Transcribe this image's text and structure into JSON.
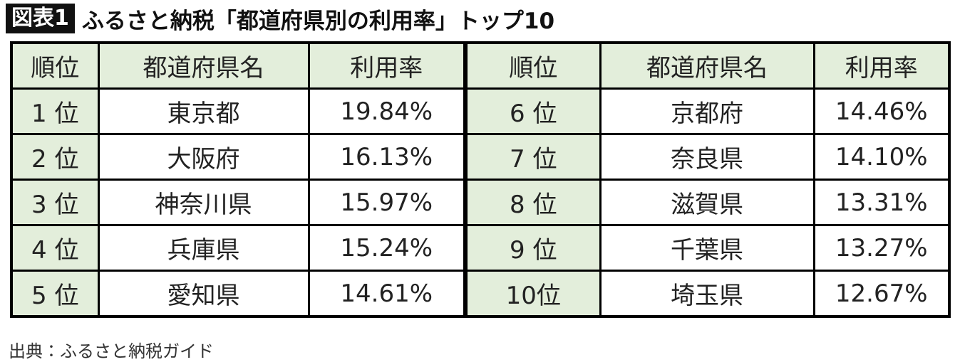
{
  "header": {
    "label": "図表1",
    "title": "ふるさと納税「都道府県別の利用率」トップ10"
  },
  "table": {
    "columns": [
      "順位",
      "都道府県名",
      "利用率",
      "順位",
      "都道府県名",
      "利用率"
    ],
    "rows": [
      [
        "1 位",
        "東京都",
        "19.84%",
        "6 位",
        "京都府",
        "14.46%"
      ],
      [
        "2 位",
        "大阪府",
        "16.13%",
        "7 位",
        "奈良県",
        "14.10%"
      ],
      [
        "3 位",
        "神奈川県",
        "15.97%",
        "8 位",
        "滋賀県",
        "13.31%"
      ],
      [
        "4 位",
        "兵庫県",
        "15.24%",
        "9 位",
        "千葉県",
        "13.27%"
      ],
      [
        "5 位",
        "愛知県",
        "14.61%",
        "10位",
        "埼玉県",
        "12.67%"
      ]
    ]
  },
  "source": "出典：ふるさと納税ガイド"
}
